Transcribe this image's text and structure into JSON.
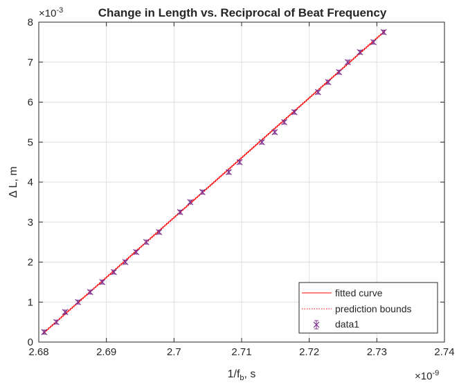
{
  "chart_data": {
    "type": "scatter",
    "title": "Change in Length vs. Reciprocal of Beat Frequency",
    "xlabel": "1/f",
    "xlabel_sub": "b",
    "xlabel_suffix": ", s",
    "ylabel": "Δ L, m",
    "x_exponent_label": "×10",
    "x_exponent": "-9",
    "y_exponent_label": "×10",
    "y_exponent": "-3",
    "xlim": [
      2.68,
      2.74
    ],
    "ylim": [
      0,
      8
    ],
    "x_scale_factor": 1e-09,
    "y_scale_factor": 0.001,
    "xticks": [
      2.68,
      2.69,
      2.7,
      2.71,
      2.72,
      2.73,
      2.74
    ],
    "xtick_labels": [
      "2.68",
      "2.69",
      "2.7",
      "2.71",
      "2.72",
      "2.73",
      "2.74"
    ],
    "yticks": [
      0,
      1,
      2,
      3,
      4,
      5,
      6,
      7,
      8
    ],
    "ytick_labels": [
      "0",
      "1",
      "2",
      "3",
      "4",
      "5",
      "6",
      "7",
      "8"
    ],
    "grid": true,
    "legend_position": "bottom-right",
    "series": [
      {
        "name": "data1",
        "marker": "x",
        "color": "#7e2f8e",
        "error_bar": 0.05,
        "x": [
          2.6808,
          2.6826,
          2.6839,
          2.6858,
          2.6876,
          2.6894,
          2.6911,
          2.6928,
          2.6944,
          2.6959,
          2.6978,
          2.7009,
          2.7024,
          2.7042,
          2.7081,
          2.7097,
          2.713,
          2.7149,
          2.7163,
          2.7178,
          2.7213,
          2.7228,
          2.7244,
          2.7257,
          2.7275,
          2.7295,
          2.731
        ],
        "y": [
          0.25,
          0.5,
          0.75,
          1.0,
          1.25,
          1.5,
          1.75,
          2.0,
          2.25,
          2.5,
          2.75,
          3.25,
          3.5,
          3.75,
          4.25,
          4.5,
          5.0,
          5.25,
          5.5,
          5.75,
          6.25,
          6.5,
          6.75,
          7.0,
          7.25,
          7.5,
          7.75
        ]
      },
      {
        "name": "fitted curve",
        "style": "solid",
        "color": "#ff0000",
        "x": [
          2.6806,
          2.7312
        ],
        "y": [
          0.21,
          7.78
        ]
      },
      {
        "name": "prediction bounds",
        "style": "dotted",
        "color": "#ff0000"
      }
    ]
  }
}
